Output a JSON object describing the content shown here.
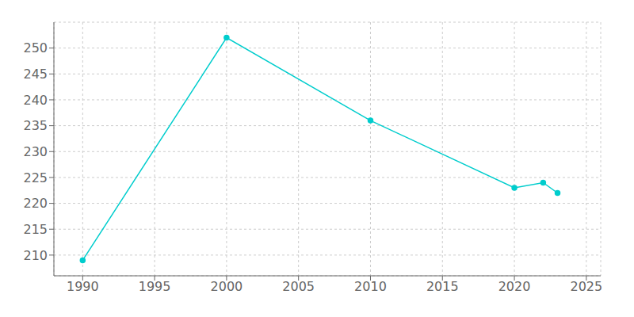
{
  "chart_data": {
    "type": "line",
    "x": [
      1990,
      2000,
      2010,
      2020,
      2022,
      2023
    ],
    "values": [
      209,
      252,
      236,
      223,
      224,
      222
    ],
    "color": "#00CDCD",
    "marker": "circle",
    "xlim": [
      1988,
      2026
    ],
    "ylim": [
      206,
      255
    ],
    "xticks": [
      1990,
      1995,
      2000,
      2005,
      2010,
      2015,
      2020,
      2025
    ],
    "yticks": [
      210,
      215,
      220,
      225,
      230,
      235,
      240,
      245,
      250
    ],
    "grid": true
  }
}
